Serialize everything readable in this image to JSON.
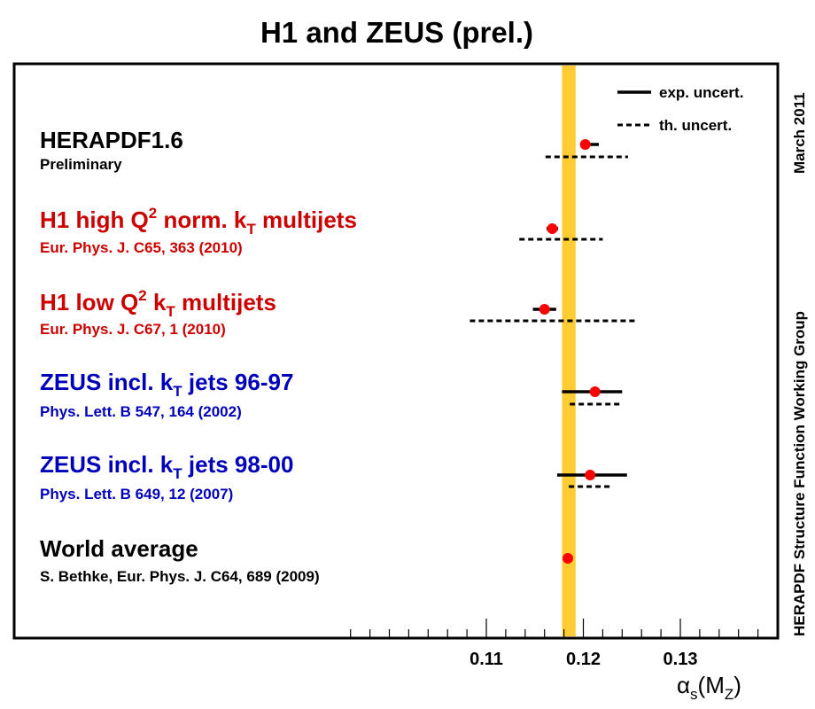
{
  "chart_data": {
    "type": "scatter",
    "title": "H1 and ZEUS (prel.)",
    "side_note_top": "March 2011",
    "side_note_bottom": "HERAPDF Structure Function Working Group",
    "xlabel_main": "α",
    "xlabel_sub": "s",
    "xlabel_paren": "(M",
    "xlabel_sub2": "Z",
    "xlabel_close": ")",
    "xlim": [
      0.095,
      0.139
    ],
    "major_ticks": [
      0.11,
      0.12,
      0.13
    ],
    "tick_labels": [
      "0.11",
      "0.12",
      "0.13"
    ],
    "minor_tick_step": 0.002,
    "band": {
      "low": 0.1178,
      "high": 0.1192,
      "color": "#ffcc33"
    },
    "legend": {
      "exp_label": "exp. uncert.",
      "th_label": "th. uncert.",
      "placement": "top-right"
    },
    "colors": {
      "black": "#000000",
      "red": "#cc0000",
      "blue": "#0000bb",
      "marker": "#ff0000"
    },
    "series": [
      {
        "name": "HERAPDF1.6",
        "name_parts": [
          {
            "t": "HERAPDF1.6"
          }
        ],
        "reference": "Preliminary",
        "color": "black",
        "value": 0.1202,
        "exp": [
          0.1198,
          0.1216
        ],
        "th": [
          0.1161,
          0.1246
        ]
      },
      {
        "name": "H1 high Q2 norm. kT multijets",
        "name_parts": [
          {
            "t": "H1 high Q"
          },
          {
            "t": "2",
            "sup": true
          },
          {
            "t": " norm. k"
          },
          {
            "t": "T",
            "sub": true
          },
          {
            "t": " multijets"
          }
        ],
        "reference": "Eur. Phys. J. C65, 363 (2010)",
        "color": "red",
        "value": 0.1168,
        "exp": [
          0.1162,
          0.1174
        ],
        "th": [
          0.1134,
          0.122
        ]
      },
      {
        "name": "H1 low Q2 kT multijets",
        "name_parts": [
          {
            "t": "H1 low Q"
          },
          {
            "t": "2",
            "sup": true
          },
          {
            "t": " k"
          },
          {
            "t": "T",
            "sub": true
          },
          {
            "t": " multijets"
          }
        ],
        "reference": "Eur. Phys. J. C67, 1 (2010)",
        "color": "red",
        "value": 0.116,
        "exp": [
          0.1148,
          0.1172
        ],
        "th": [
          0.1083,
          0.1253
        ]
      },
      {
        "name": "ZEUS incl. kT jets 96-97",
        "name_parts": [
          {
            "t": "ZEUS incl. k"
          },
          {
            "t": "T",
            "sub": true
          },
          {
            "t": " jets 96-97"
          }
        ],
        "reference": "Phys. Lett. B 547, 164 (2002)",
        "color": "blue",
        "value": 0.1212,
        "exp": [
          0.1178,
          0.124
        ],
        "th": [
          0.1186,
          0.124
        ]
      },
      {
        "name": "ZEUS incl. kT jets 98-00",
        "name_parts": [
          {
            "t": "ZEUS incl. k"
          },
          {
            "t": "T",
            "sub": true
          },
          {
            "t": " jets 98-00"
          }
        ],
        "reference": "Phys. Lett. B 649, 12 (2007)",
        "color": "blue",
        "value": 0.1207,
        "exp": [
          0.1173,
          0.1245
        ],
        "th": [
          0.1185,
          0.123
        ]
      },
      {
        "name": "World average",
        "name_parts": [
          {
            "t": "World average"
          }
        ],
        "reference": "S. Bethke, Eur. Phys. J. C64, 689 (2009)",
        "color": "black",
        "value": 0.1184,
        "exp": [
          0.118,
          0.1188
        ],
        "th": null
      }
    ]
  }
}
